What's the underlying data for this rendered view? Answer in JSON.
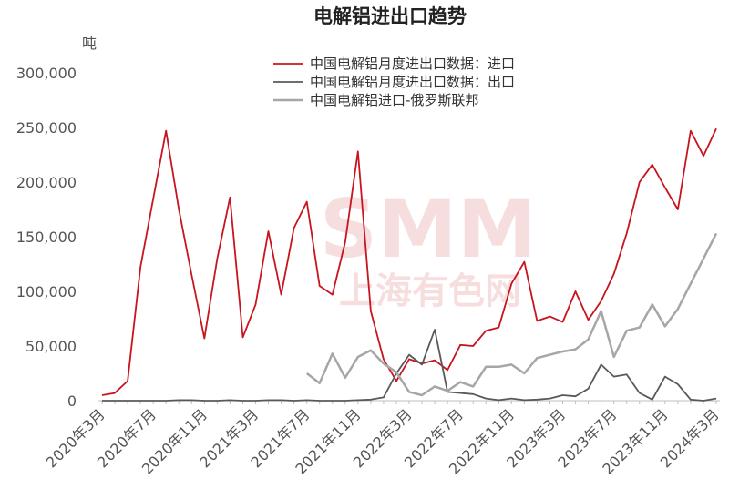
{
  "chart_data": {
    "type": "line",
    "title": "电解铝进出口趋势",
    "ylabel": "吨",
    "ylim": [
      0,
      300000
    ],
    "yticks": [
      "300,000",
      "250,000",
      "200,000",
      "150,000",
      "100,000",
      "50,000",
      "0"
    ],
    "ytick_values": [
      300000,
      250000,
      200000,
      150000,
      100000,
      50000,
      0
    ],
    "x": [
      "2020年3月",
      "2020年4月",
      "2020年5月",
      "2020年6月",
      "2020年7月",
      "2020年8月",
      "2020年9月",
      "2020年10月",
      "2020年11月",
      "2020年12月",
      "2021年1月",
      "2021年2月",
      "2021年3月",
      "2021年4月",
      "2021年5月",
      "2021年6月",
      "2021年7月",
      "2021年8月",
      "2021年9月",
      "2021年10月",
      "2021年11月",
      "2021年12月",
      "2022年1月",
      "2022年2月",
      "2022年3月",
      "2022年4月",
      "2022年5月",
      "2022年6月",
      "2022年7月",
      "2022年8月",
      "2022年9月",
      "2022年10月",
      "2022年11月",
      "2022年12月",
      "2023年1月",
      "2023年2月",
      "2023年3月",
      "2023年4月",
      "2023年5月",
      "2023年6月",
      "2023年7月",
      "2023年8月",
      "2023年9月",
      "2023年10月",
      "2023年11月",
      "2023年12月",
      "2024年1月",
      "2024年2月",
      "2024年3月"
    ],
    "xtick_labels": [
      "2020年3月",
      "2020年7月",
      "2020年11月",
      "2021年3月",
      "2021年7月",
      "2021年11月",
      "2022年3月",
      "2022年7月",
      "2022年11月",
      "2023年3月",
      "2023年7月",
      "2023年11月",
      "2024年3月"
    ],
    "xtick_index": [
      0,
      4,
      8,
      12,
      16,
      20,
      24,
      28,
      32,
      36,
      40,
      44,
      48
    ],
    "legend_position": "top-right",
    "series": [
      {
        "name": "中国电解铝月度进出口数据：进口",
        "color": "#c8141e",
        "values": [
          5000,
          7000,
          18000,
          122000,
          185000,
          247000,
          175000,
          115000,
          57000,
          130000,
          186000,
          58000,
          88000,
          155000,
          97000,
          158000,
          182000,
          105000,
          97000,
          145000,
          228000,
          82000,
          38000,
          18000,
          38000,
          34000,
          37000,
          28000,
          51000,
          50000,
          64000,
          67000,
          107000,
          127000,
          73000,
          77000,
          72000,
          100000,
          74000,
          91000,
          116000,
          153000,
          200000,
          216000,
          195000,
          175000,
          247000,
          224000,
          249000
        ]
      },
      {
        "name": "中国电解铝月度进出口数据：出口",
        "color": "#595959",
        "values": [
          0,
          0,
          0,
          0,
          0,
          0,
          500,
          500,
          0,
          0,
          500,
          0,
          0,
          500,
          500,
          0,
          500,
          0,
          0,
          0,
          500,
          1000,
          3000,
          25000,
          42000,
          33000,
          65000,
          8000,
          7000,
          6000,
          2000,
          500,
          2000,
          500,
          1000,
          2000,
          5000,
          4000,
          11000,
          33000,
          22000,
          24000,
          7000,
          1000,
          22000,
          15000,
          1000,
          0,
          2000
        ]
      },
      {
        "name": "中国电解铝进口-俄罗斯联邦",
        "color": "#a6a6a6",
        "values": [
          null,
          null,
          null,
          null,
          null,
          null,
          null,
          null,
          null,
          null,
          null,
          null,
          null,
          null,
          null,
          null,
          25000,
          16000,
          43000,
          21000,
          40000,
          46000,
          34000,
          26000,
          8000,
          5000,
          13000,
          9000,
          17000,
          13000,
          31000,
          31000,
          33000,
          25000,
          39000,
          42000,
          45000,
          47000,
          56000,
          82000,
          40000,
          64000,
          67000,
          88000,
          68000,
          84000,
          107000,
          130000,
          153000
        ]
      }
    ]
  },
  "watermark": {
    "line1": "SMM",
    "line2": "上海有色网"
  }
}
